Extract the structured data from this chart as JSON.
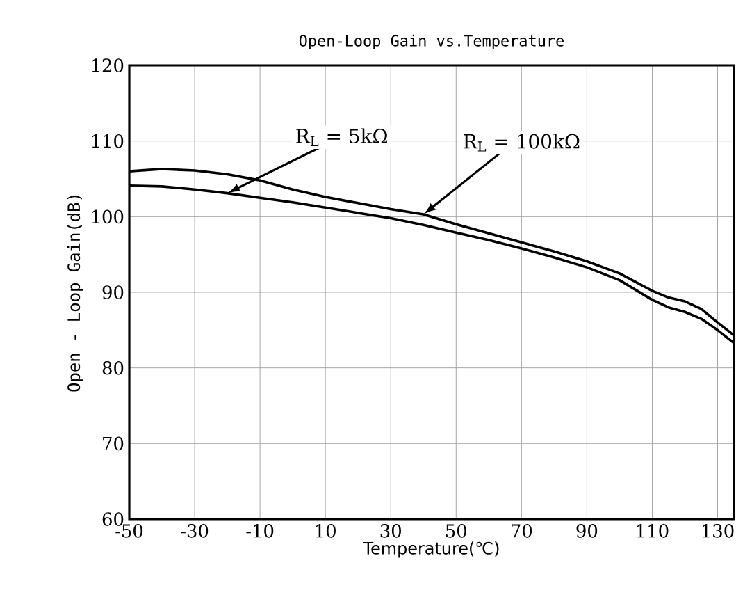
{
  "chart_data": {
    "type": "line",
    "title": "Open-Loop Gain vs.Temperature",
    "xlabel": "Temperature(℃)",
    "ylabel": "Open - Loop Gain(dB)",
    "xlim": [
      -50,
      135
    ],
    "xticks": [
      -50,
      -30,
      -10,
      10,
      30,
      50,
      70,
      90,
      110,
      130
    ],
    "ylim": [
      60,
      120
    ],
    "yticks": [
      60,
      70,
      80,
      90,
      100,
      110,
      120
    ],
    "grid": true,
    "marker": "none",
    "line_style": "solid",
    "x": [
      -50,
      -40,
      -30,
      -20,
      -10,
      0,
      10,
      20,
      30,
      40,
      50,
      60,
      70,
      80,
      90,
      100,
      110,
      115,
      120,
      125,
      130,
      135
    ],
    "series": [
      {
        "color": "#000000",
        "values": [
          106.0,
          106.3,
          106.1,
          105.6,
          104.8,
          103.6,
          102.6,
          101.8,
          101.0,
          100.3,
          99.0,
          97.8,
          96.6,
          95.4,
          94.1,
          92.5,
          90.2,
          89.3,
          88.8,
          87.8,
          86.0,
          84.3
        ]
      },
      {
        "color": "#000000",
        "values": [
          104.1,
          104.0,
          103.6,
          103.1,
          102.5,
          101.9,
          101.2,
          100.5,
          99.8,
          98.9,
          97.9,
          96.9,
          95.8,
          94.6,
          93.3,
          91.6,
          89.0,
          88.0,
          87.4,
          86.5,
          85.0,
          83.3
        ]
      }
    ],
    "annotations": [
      {
        "text": "R$_{L}$ = 5kΩ",
        "x": -20,
        "y": 103.1
      },
      {
        "text": "R$_{L}$ = 100kΩ",
        "x": 40,
        "y": 100.3
      }
    ]
  }
}
